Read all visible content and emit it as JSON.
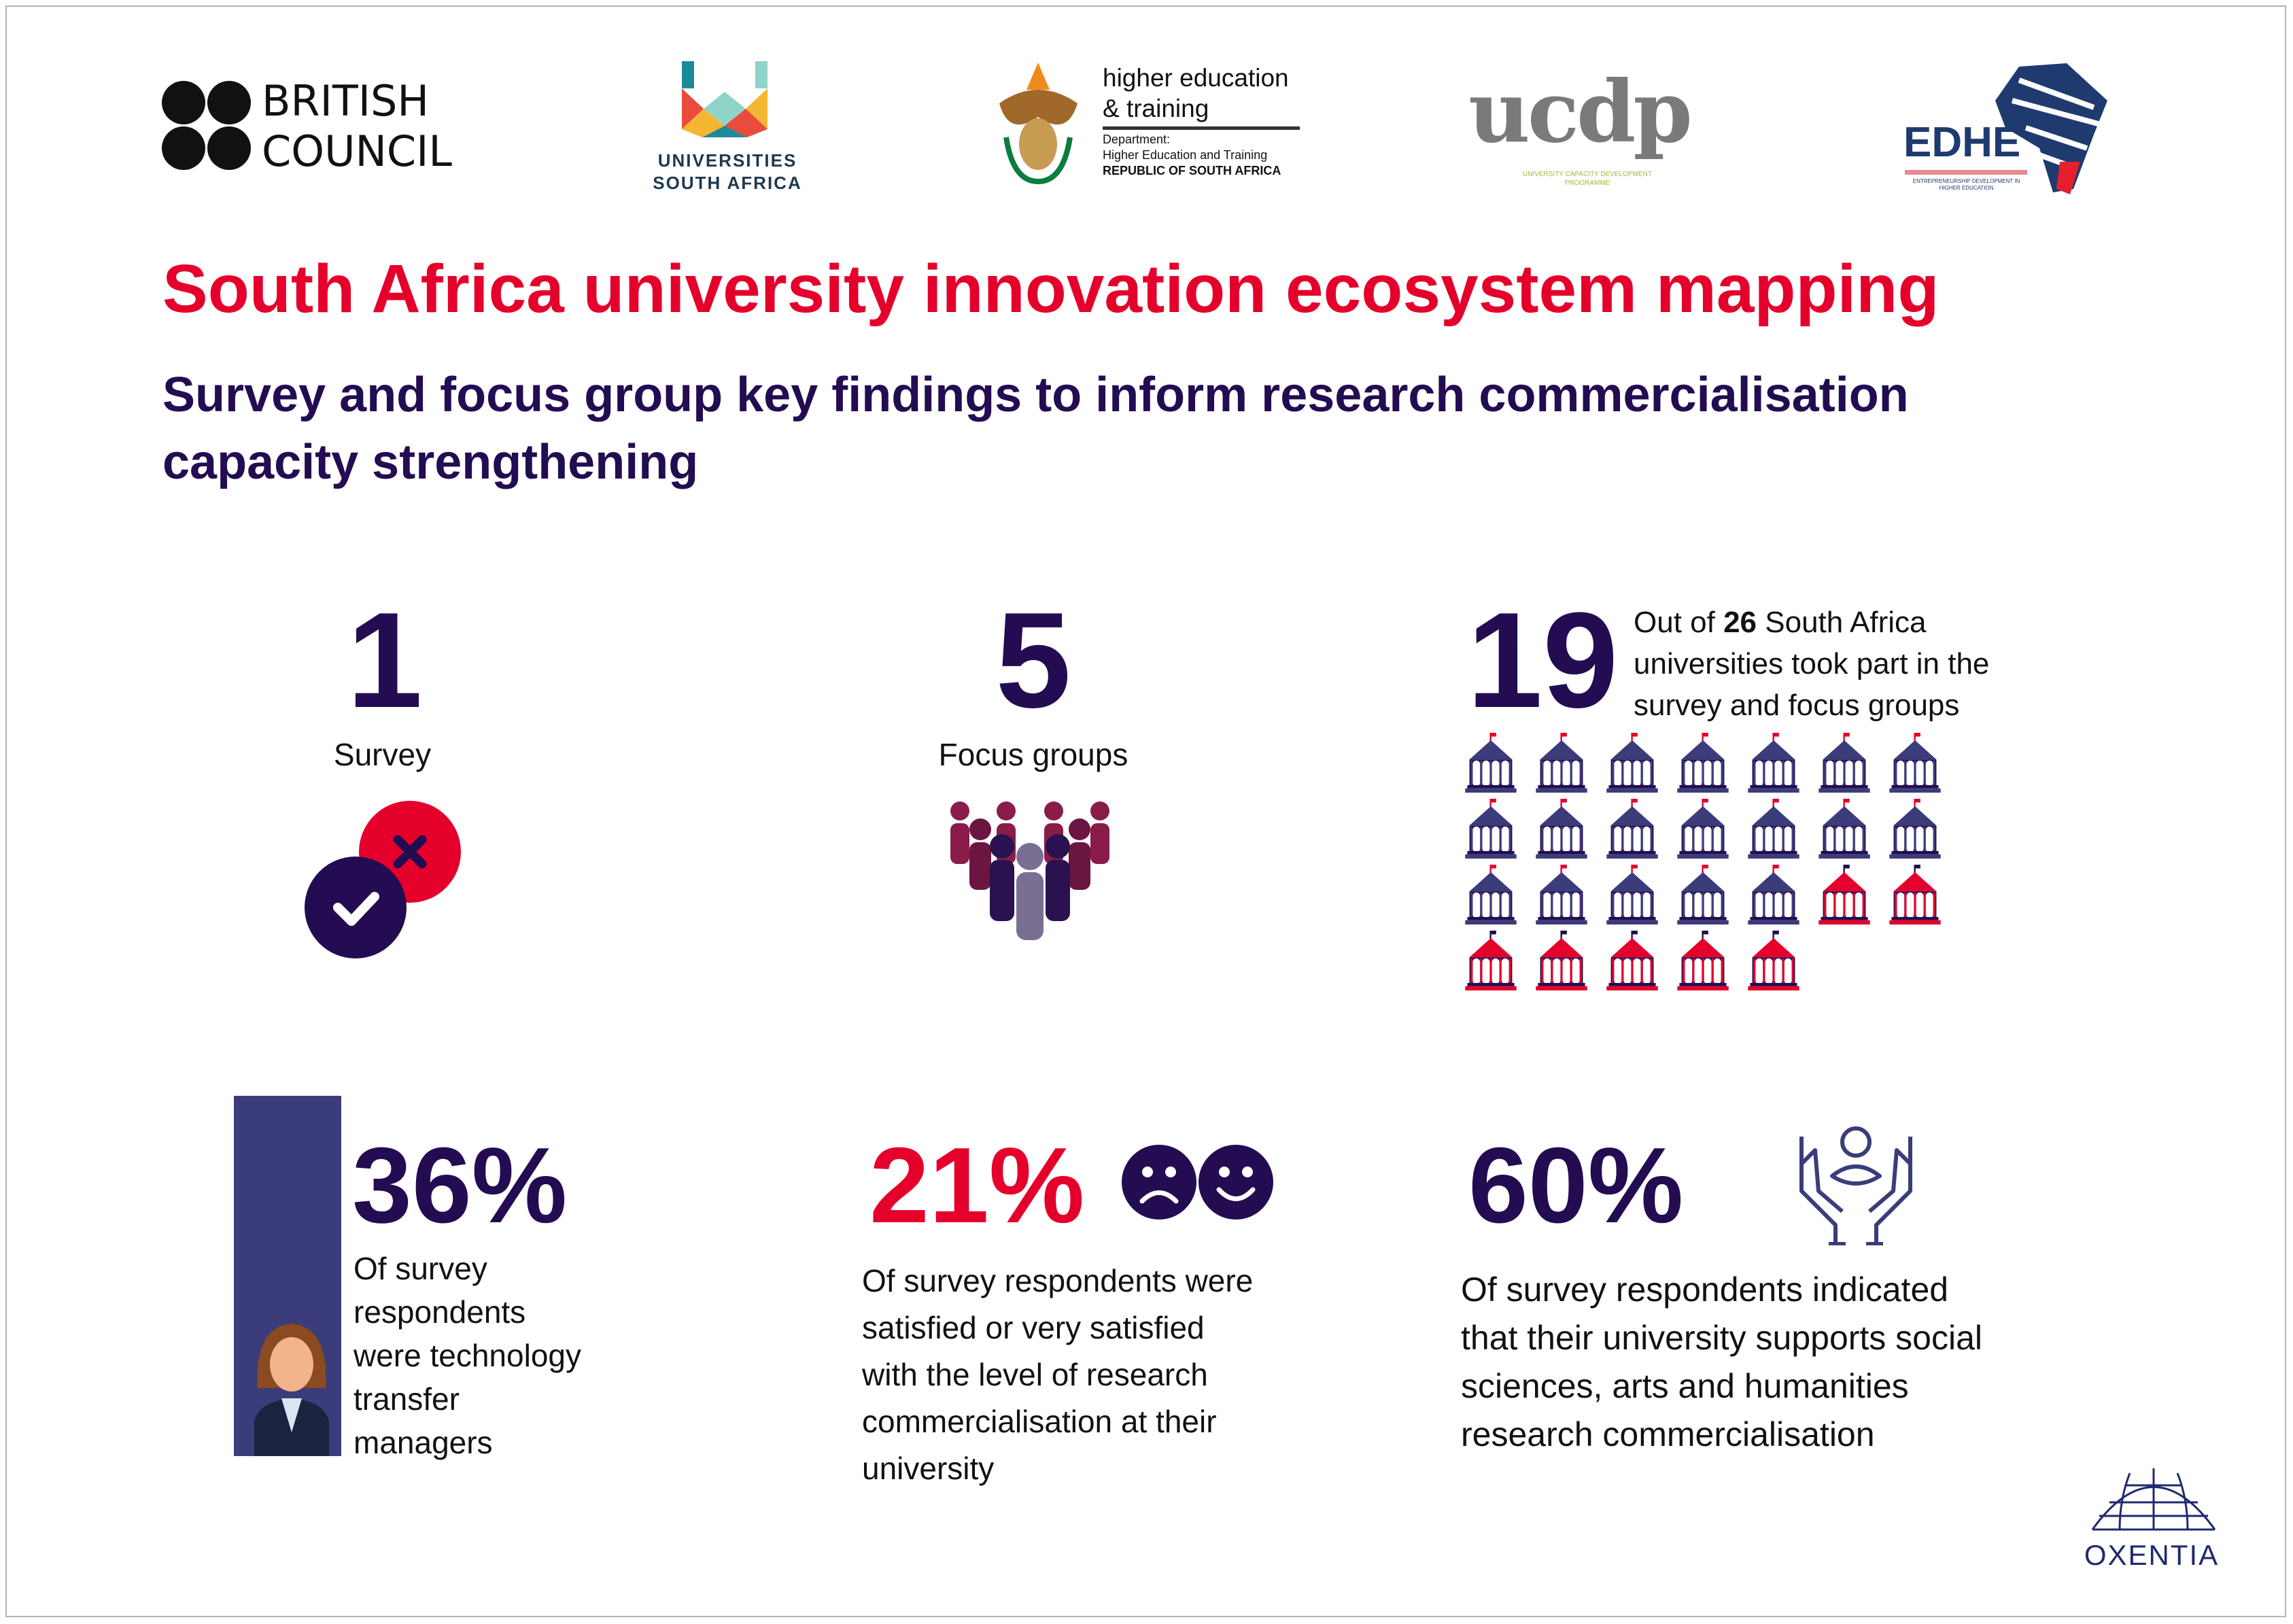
{
  "logos": {
    "british_council": [
      "BRITISH",
      "COUNCIL"
    ],
    "usaf": [
      "UNIVERSITIES",
      "SOUTH AFRICA"
    ],
    "dhet": {
      "line1": "higher education",
      "line2": "& training",
      "line3": "Department:",
      "line4": "Higher Education and Training",
      "line5": "REPUBLIC OF SOUTH AFRICA"
    },
    "ucdp": {
      "wordmark": "ucdp",
      "tagline": "UNIVERSITY CAPACITY DEVELOPMENT PROGRAMME"
    },
    "edhe": {
      "wordmark": "EDHE",
      "tagline": "ENTREPRENEURSHIP DEVELOPMENT IN HIGHER EDUCATION"
    },
    "oxentia": "OXENTIA"
  },
  "title": "South Africa university innovation ecosystem mapping",
  "subtitle": [
    "Survey and focus group key findings to inform research commercialisation",
    "capacity strengthening"
  ],
  "stats": {
    "survey": {
      "number": "1",
      "label": "Survey"
    },
    "focus": {
      "number": "5",
      "label": "Focus groups"
    },
    "universities": {
      "number": "19",
      "pre": "Out of ",
      "bold": "26",
      "post": " South Africa",
      "line2": "universities took part in the",
      "line3": "survey and focus groups",
      "participated": 19,
      "total": 26
    }
  },
  "findings": {
    "ttm": {
      "pct": "36%",
      "lines": [
        "Of survey",
        "respondents",
        "were technology",
        "transfer",
        "managers"
      ]
    },
    "satisfied": {
      "pct": "21%",
      "lines": [
        "Of survey respondents were",
        "satisfied or very satisfied",
        "with the level of research",
        "commercialisation at their",
        "university"
      ]
    },
    "ssah": {
      "pct": "60%",
      "lines": [
        "Of survey respondents indicated",
        "that their university supports social",
        "sciences, arts and humanities",
        "research commercialisation"
      ]
    }
  },
  "colors": {
    "navy": "#230c52",
    "slate": "#3b3c7a",
    "red": "#e4002b"
  }
}
